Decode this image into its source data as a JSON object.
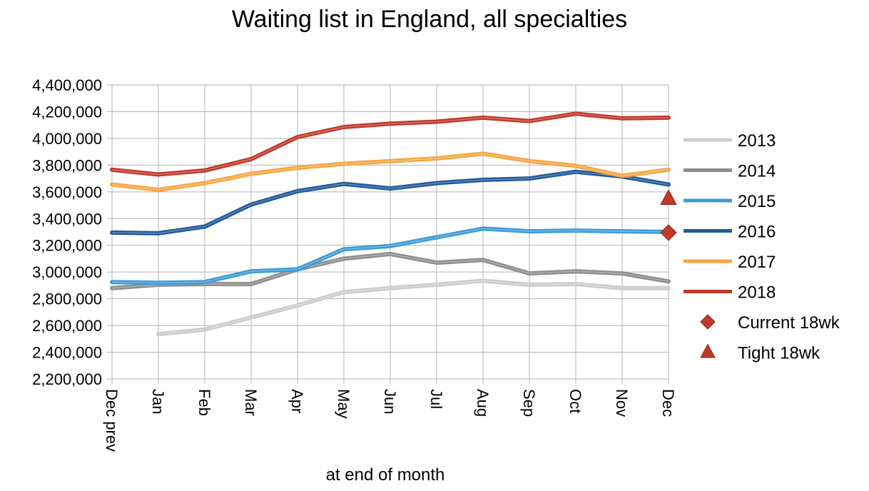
{
  "chart_data": {
    "type": "line",
    "title": "Waiting list in England, all specialties",
    "xlabel": "at end of month",
    "ylabel": "",
    "categories": [
      "Dec prev",
      "Jan",
      "Feb",
      "Mar",
      "Apr",
      "May",
      "Jun",
      "Jul",
      "Aug",
      "Sep",
      "Oct",
      "Nov",
      "Dec"
    ],
    "ylim": [
      2200000,
      4400000
    ],
    "yticks": [
      2200000,
      2400000,
      2600000,
      2800000,
      3000000,
      3200000,
      3400000,
      3600000,
      3800000,
      4000000,
      4200000,
      4400000
    ],
    "ytick_labels": [
      "2,200,000",
      "2,400,000",
      "2,600,000",
      "2,800,000",
      "3,000,000",
      "3,200,000",
      "3,400,000",
      "3,600,000",
      "3,800,000",
      "4,000,000",
      "4,200,000",
      "4,400,000"
    ],
    "grid": true,
    "legend_position": "right",
    "series": [
      {
        "name": "2013",
        "color": "#cccccc",
        "values": [
          null,
          2535000,
          2570000,
          2660000,
          2750000,
          2850000,
          2880000,
          2905000,
          2935000,
          2905000,
          2910000,
          2880000,
          2880000
        ]
      },
      {
        "name": "2014",
        "color": "#8e8e8e",
        "values": [
          2880000,
          2905000,
          2910000,
          2910000,
          3020000,
          3100000,
          3135000,
          3070000,
          3090000,
          2990000,
          3005000,
          2990000,
          2930000
        ]
      },
      {
        "name": "2015",
        "color": "#3d9bd8",
        "values": [
          2925000,
          2920000,
          2925000,
          3005000,
          3020000,
          3170000,
          3195000,
          3260000,
          3325000,
          3305000,
          3310000,
          3305000,
          3300000
        ]
      },
      {
        "name": "2016",
        "color": "#1f5a9a",
        "values": [
          3295000,
          3290000,
          3340000,
          3505000,
          3605000,
          3660000,
          3625000,
          3665000,
          3690000,
          3700000,
          3750000,
          3715000,
          3655000
        ]
      },
      {
        "name": "2017",
        "color": "#f5a742",
        "values": [
          3655000,
          3615000,
          3665000,
          3735000,
          3780000,
          3810000,
          3830000,
          3850000,
          3885000,
          3830000,
          3795000,
          3720000,
          3765000
        ]
      },
      {
        "name": "2018",
        "color": "#c0392b",
        "values": [
          3765000,
          3730000,
          3760000,
          3845000,
          4010000,
          4085000,
          4110000,
          4125000,
          4155000,
          4130000,
          4185000,
          4150000,
          4155000
        ]
      }
    ],
    "markers": [
      {
        "name": "Current 18wk",
        "shape": "diamond",
        "color": "#c0392b",
        "category": "Dec",
        "value": 3295000
      },
      {
        "name": "Tight 18wk",
        "shape": "triangle",
        "color": "#c0392b",
        "category": "Dec",
        "value": 3555000
      }
    ]
  }
}
